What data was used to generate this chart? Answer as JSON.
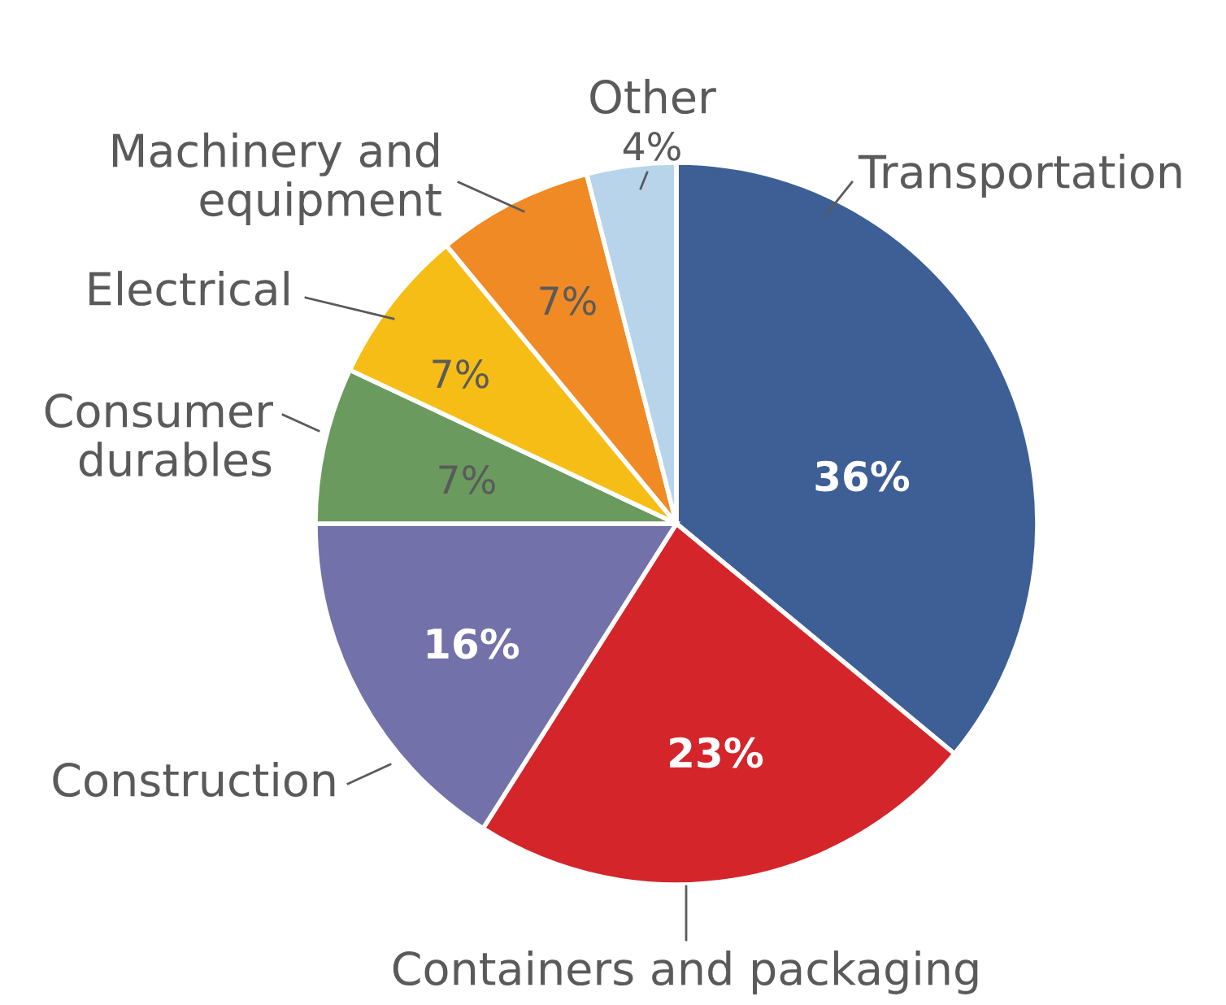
{
  "chart_data": {
    "type": "pie",
    "categories": [
      "Transportation",
      "Containers and packaging",
      "Construction",
      "Consumer\ndurables",
      "Electrical",
      "Machinery and\nequipment",
      "Other"
    ],
    "values": [
      36,
      23,
      16,
      7,
      7,
      7,
      4
    ],
    "colors": [
      "#3d5f96",
      "#d4252b",
      "#7271aa",
      "#6b9a5e",
      "#f6bd17",
      "#ef8a25",
      "#b7d4ea"
    ],
    "value_labels": [
      "36%",
      "23%",
      "16%",
      "7%",
      "7%",
      "7%",
      "4%"
    ],
    "legend": false
  }
}
